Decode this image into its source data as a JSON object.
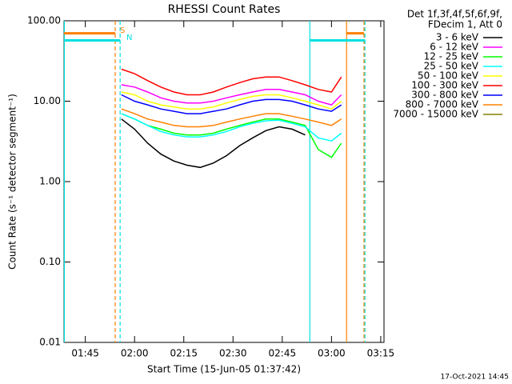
{
  "chart_data": {
    "type": "line",
    "title": "RHESSI Count Rates",
    "x_label": "Start Time (15-Jun-05 01:37:42)",
    "y_label": "Count Rate (s⁻¹ detector segment⁻¹)",
    "legend_header": [
      "Det 1f,3f,4f,5f,6f,9f,",
      "FDecim 1, Att 0"
    ],
    "footer": "17-Oct-2021 14:45",
    "log_y": true,
    "legend": "outside-right",
    "xlim": [
      98.5,
      196
    ],
    "xticks": [
      {
        "value": 105,
        "label": "01:45"
      },
      {
        "value": 120,
        "label": "02:00"
      },
      {
        "value": 135,
        "label": "02:15"
      },
      {
        "value": 150,
        "label": "02:30"
      },
      {
        "value": 165,
        "label": "02:45"
      },
      {
        "value": 180,
        "label": "03:00"
      },
      {
        "value": 195,
        "label": "03:15"
      }
    ],
    "ylim": [
      0.01,
      100
    ],
    "yticks": [
      {
        "value": 0.01,
        "label": "0.01"
      },
      {
        "value": 0.1,
        "label": "0.10"
      },
      {
        "value": 1,
        "label": "1.00"
      },
      {
        "value": 10,
        "label": "10.00"
      },
      {
        "value": 100,
        "label": "100.00"
      }
    ],
    "x": [
      116,
      120,
      124,
      128,
      132,
      136,
      140,
      144,
      148,
      152,
      156,
      160,
      164,
      168,
      172,
      176,
      180,
      183
    ],
    "series": [
      {
        "name": "3 - 6 keV",
        "color": "#000000",
        "values": [
          6,
          4.5,
          3,
          2.2,
          1.8,
          1.6,
          1.5,
          1.7,
          2.1,
          2.8,
          3.5,
          4.3,
          4.8,
          4.5,
          3.8,
          null,
          null,
          null
        ]
      },
      {
        "name": "6 - 12 keV",
        "color": "#ff00ff",
        "values": [
          16,
          15,
          13,
          11,
          10,
          9.5,
          9.5,
          10,
          11,
          12,
          13,
          14,
          14,
          13,
          12,
          10,
          9,
          12
        ]
      },
      {
        "name": "12 - 25 keV",
        "color": "#00ff00",
        "values": [
          7,
          6,
          5,
          4.5,
          4,
          3.8,
          3.8,
          4,
          4.5,
          5,
          5.5,
          6,
          6,
          5.5,
          5,
          2.5,
          2,
          3
        ]
      },
      {
        "name": "25 - 50 keV",
        "color": "#00ffff",
        "values": [
          7,
          6,
          5,
          4.2,
          3.8,
          3.6,
          3.6,
          3.8,
          4.2,
          4.8,
          5.3,
          5.7,
          5.8,
          5.3,
          4.8,
          3.5,
          3.2,
          4
        ]
      },
      {
        "name": "50 - 100 keV",
        "color": "#ffff00",
        "values": [
          13,
          12,
          10,
          9,
          8.5,
          8,
          8,
          8.5,
          9.5,
          10.5,
          11.5,
          12,
          12,
          11,
          10,
          9,
          8,
          10
        ]
      },
      {
        "name": "100 - 300 keV",
        "color": "#ff0000",
        "values": [
          25,
          22,
          18,
          15,
          13,
          12,
          12,
          13,
          15,
          17,
          19,
          20,
          20,
          18,
          16,
          14,
          13,
          20
        ]
      },
      {
        "name": "300 - 800 keV",
        "color": "#0000ff",
        "values": [
          12,
          10,
          9,
          8,
          7.5,
          7,
          7,
          7.5,
          8,
          9,
          10,
          10.5,
          10.5,
          10,
          9,
          8,
          7.5,
          9
        ]
      },
      {
        "name": "800 - 7000 keV",
        "color": "#ff8000",
        "values": [
          8,
          7,
          6,
          5.5,
          5,
          4.8,
          4.8,
          5,
          5.5,
          6,
          6.5,
          7,
          7,
          6.5,
          6,
          5.5,
          5,
          6
        ]
      },
      {
        "name": "7000 - 15000 keV",
        "color": "#808000",
        "values": [
          null,
          null,
          null,
          null,
          null,
          null,
          null,
          null,
          null,
          null,
          null,
          null,
          null,
          null,
          null,
          null,
          null,
          null
        ]
      }
    ],
    "flag_labels": [
      {
        "text": "S",
        "color": "#ff8000"
      },
      {
        "text": "N",
        "color": "#00e0e0"
      }
    ],
    "flag_bars": [
      {
        "color": "#ff8000",
        "y": 70,
        "x0": 98.5,
        "x1": 114.1
      },
      {
        "color": "#ff8000",
        "y": 70,
        "x0": 184.6,
        "x1": 189.9
      },
      {
        "color": "#00e0e0",
        "y": 57,
        "x0": 98.5,
        "x1": 115.6
      },
      {
        "color": "#00e0e0",
        "y": 57,
        "x0": 173.4,
        "x1": 190.2
      }
    ],
    "flag_lines": [
      {
        "x": 98.6,
        "color": "#00e0e0",
        "dashed": false
      },
      {
        "x": 114.1,
        "color": "#ff8000",
        "dashed": true
      },
      {
        "x": 115.6,
        "color": "#00e0e0",
        "dashed": true
      },
      {
        "x": 173.4,
        "color": "#00e0e0",
        "dashed": false
      },
      {
        "x": 184.6,
        "color": "#ff8000",
        "dashed": false
      },
      {
        "x": 189.9,
        "color": "#ff8000",
        "dashed": true
      },
      {
        "x": 190.2,
        "color": "#00e0e0",
        "dashed": true
      }
    ]
  }
}
